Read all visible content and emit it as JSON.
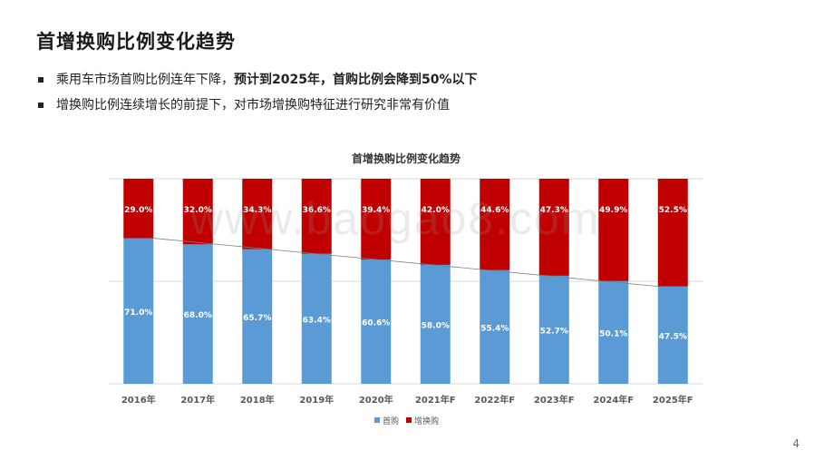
{
  "slide": {
    "title": "首增换购比例变化趋势",
    "bullets": [
      {
        "normal": "乘用车市场首购比例连年下降，",
        "bold": "预计到2025年，首购比例会降到50%以下"
      },
      {
        "normal": "增换购比例连续增长的前提下，对市场增换购特征进行研究非常有价值",
        "bold": ""
      }
    ],
    "watermark": "www.baogao8.com",
    "page_number": "4"
  },
  "colors": {
    "first_purchase": "#5b9bd5",
    "replacement": "#c00000"
  },
  "chart_data": {
    "type": "bar",
    "stacked": true,
    "percent": true,
    "title": "首增换购比例变化趋势",
    "categories": [
      "2016年",
      "2017年",
      "2018年",
      "2019年",
      "2020年",
      "2021年F",
      "2022年F",
      "2023年F",
      "2024年F",
      "2025年F"
    ],
    "series": [
      {
        "name": "首购",
        "values": [
          71.0,
          68.0,
          65.7,
          63.4,
          60.6,
          58.0,
          55.4,
          52.7,
          50.1,
          47.5
        ],
        "labels": [
          "71.0%",
          "68.0%",
          "65.7%",
          "63.4%",
          "60.6%",
          "58.0%",
          "55.4%",
          "52.7%",
          "50.1%",
          "47.5%"
        ]
      },
      {
        "name": "增换购",
        "values": [
          29.0,
          32.0,
          34.3,
          36.6,
          39.4,
          42.0,
          44.6,
          47.3,
          49.9,
          52.5
        ],
        "labels": [
          "29.0%",
          "32.0%",
          "34.3%",
          "36.6%",
          "39.4%",
          "42.0%",
          "44.6%",
          "47.3%",
          "49.9%",
          "52.5%"
        ]
      }
    ],
    "ylim": [
      0,
      100
    ],
    "legend": "bottom",
    "trendline": "首购"
  }
}
